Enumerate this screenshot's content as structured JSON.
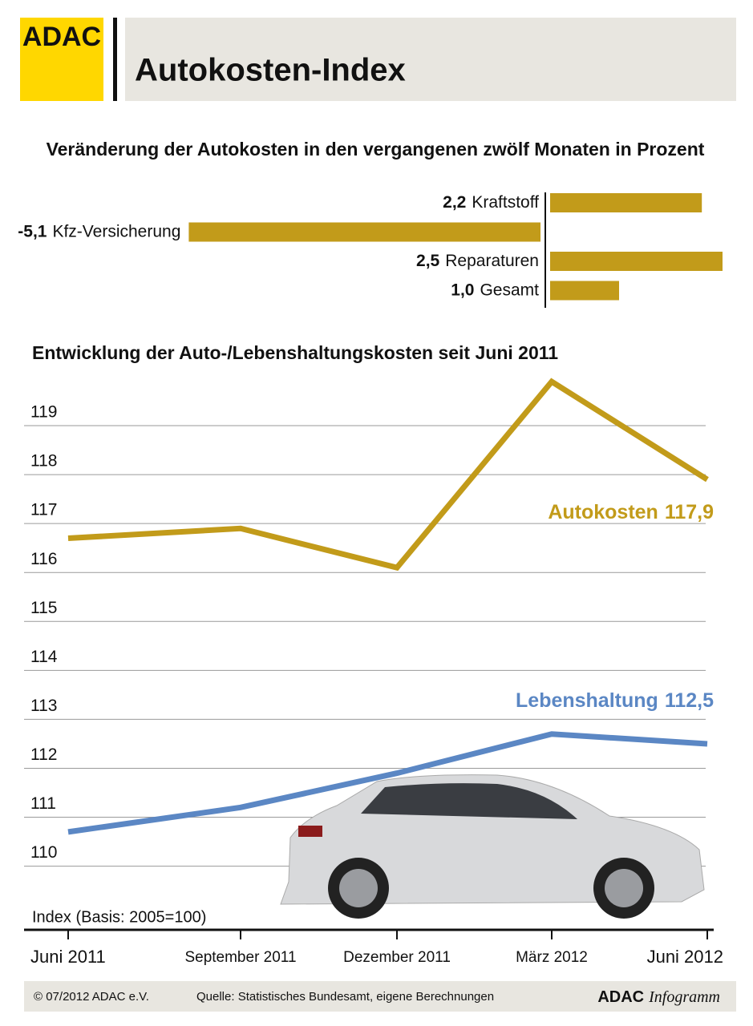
{
  "header": {
    "logo": "ADAC",
    "title": "Autokosten-Index"
  },
  "chart_data": [
    {
      "type": "bar",
      "orientation": "horizontal",
      "title": "Veränderung der Autokosten in den vergangenen zwölf Monaten in Prozent",
      "categories": [
        "Kraftstoff",
        "Kfz-Versicherung",
        "Reparaturen",
        "Gesamt"
      ],
      "values": [
        2.2,
        -5.1,
        2.5,
        1.0
      ],
      "value_labels": [
        "2,2",
        "-5,1",
        "2,5",
        "1,0"
      ],
      "color": "#c29b1a"
    },
    {
      "type": "line",
      "title": "Entwicklung der Auto-/Lebenshaltungskosten seit Juni 2011",
      "y_label": "Index (Basis: 2005=100)",
      "categories": [
        "Juni 2011",
        "September 2011",
        "Dezember 2011",
        "März 2012",
        "Juni 2012"
      ],
      "series": [
        {
          "name": "Autokosten",
          "color": "#c29b1a",
          "values": [
            116.7,
            116.9,
            116.1,
            119.9,
            117.9
          ],
          "value_labels": [
            null,
            null,
            null,
            null,
            "117,9"
          ]
        },
        {
          "name": "Lebenshaltung",
          "color": "#5b87c4",
          "values": [
            110.7,
            111.2,
            111.9,
            112.7,
            112.5
          ],
          "value_labels": [
            null,
            null,
            null,
            null,
            "112,5"
          ]
        }
      ],
      "ylim": [
        108.7,
        120.0
      ],
      "yticks": [
        110,
        111,
        112,
        113,
        114,
        115,
        116,
        117,
        118,
        119
      ],
      "grid": true
    }
  ],
  "footer": {
    "copyright": "© 07/2012 ADAC e.V.",
    "source": "Quelle: Statistisches Bundesamt, eigene Berechnungen",
    "brand": "ADAC",
    "brand_suffix": "Infogramm"
  }
}
